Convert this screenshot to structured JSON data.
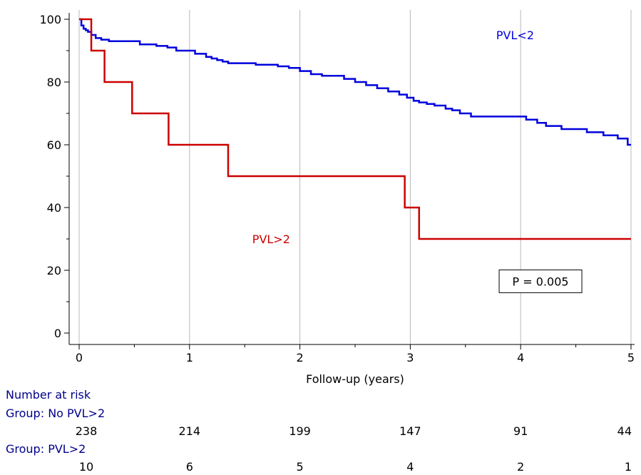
{
  "chart_data": {
    "type": "line",
    "subtype": "kaplan-meier",
    "xlabel": "Follow-up (years)",
    "ylabel": "",
    "xlim": [
      0,
      5
    ],
    "ylim": [
      0,
      100
    ],
    "xticks": [
      "0",
      "1",
      "2",
      "3",
      "4",
      "5"
    ],
    "yticks": [
      "0",
      "20",
      "40",
      "60",
      "80",
      "100"
    ],
    "grid": "vertical",
    "colors": {
      "PVL<2": "#0000dd",
      "PVL>2": "#cc0000"
    },
    "series": [
      {
        "name": "PVL<2",
        "x": [
          0,
          0.02,
          0.04,
          0.06,
          0.08,
          0.11,
          0.15,
          0.2,
          0.27,
          0.55,
          0.7,
          0.8,
          0.88,
          1.05,
          1.15,
          1.2,
          1.25,
          1.3,
          1.35,
          1.4,
          1.45,
          1.5,
          1.6,
          1.8,
          1.9,
          2.0,
          2.1,
          2.2,
          2.4,
          2.5,
          2.6,
          2.7,
          2.8,
          2.9,
          2.97,
          3.03,
          3.08,
          3.15,
          3.22,
          3.32,
          3.38,
          3.45,
          3.55,
          3.75,
          4.05,
          4.15,
          4.23,
          4.37,
          4.5,
          4.6,
          4.75,
          4.88,
          4.97
        ],
        "y": [
          100,
          98,
          97,
          96.5,
          96,
          95,
          94,
          93.5,
          93,
          92,
          91.5,
          91,
          90,
          89,
          88,
          87.5,
          87,
          86.5,
          86,
          86,
          86,
          86,
          85.5,
          85,
          84.5,
          83.5,
          82.5,
          82,
          81,
          80,
          79,
          78,
          77,
          76,
          75,
          74,
          73.5,
          73,
          72.5,
          71.5,
          71,
          70,
          69,
          69,
          68,
          67,
          66,
          65,
          65,
          64,
          63,
          62,
          60
        ],
        "x_end": 5
      },
      {
        "name": "PVL>2",
        "x": [
          0,
          0.11,
          0.23,
          0.48,
          0.81,
          1.35,
          2.95,
          3.08
        ],
        "y": [
          100,
          90,
          80,
          70,
          60,
          50,
          40,
          30
        ],
        "x_end": 5
      }
    ],
    "annotations": [
      {
        "text": "PVL<2",
        "x": 3.95,
        "y": 95
      },
      {
        "text": "PVL>2",
        "x": 1.74,
        "y": 30
      },
      {
        "text": "P = 0.005",
        "x": 4.18,
        "y": 16.5,
        "boxed": true
      }
    ],
    "risk_table": {
      "title": "Number at risk",
      "groups": [
        {
          "label": "Group: No PVL>2",
          "values": [
            "238",
            "214",
            "199",
            "147",
            "91",
            "44"
          ]
        },
        {
          "label": "Group: PVL>2",
          "values": [
            "10",
            "6",
            "5",
            "4",
            "2",
            "1"
          ]
        }
      ]
    }
  }
}
